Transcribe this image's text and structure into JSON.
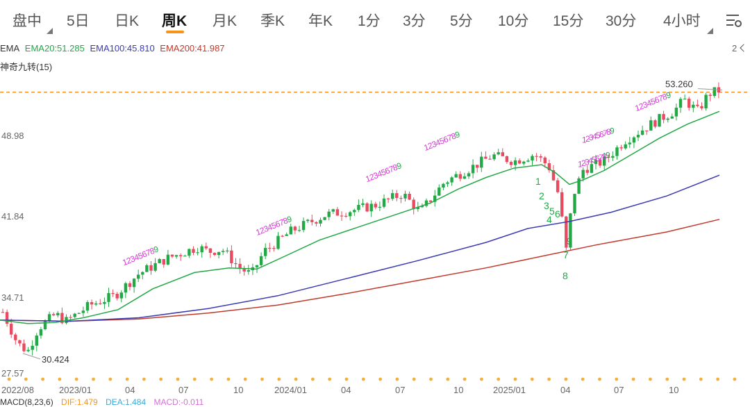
{
  "tabs": [
    {
      "label": "盘中",
      "has_menu": true
    },
    {
      "label": "5日"
    },
    {
      "label": "日K"
    },
    {
      "label": "周K",
      "active": true
    },
    {
      "label": "月K"
    },
    {
      "label": "季K"
    },
    {
      "label": "年K"
    },
    {
      "label": "1分"
    },
    {
      "label": "3分"
    },
    {
      "label": "5分"
    },
    {
      "label": "10分"
    },
    {
      "label": "15分"
    },
    {
      "label": "30分"
    },
    {
      "label": "4小时",
      "has_menu": true
    }
  ],
  "indicators": {
    "ema_label": "EMA",
    "ema20": "EMA20:51.285",
    "ema100": "EMA100:45.810",
    "ema200": "EMA200:41.987",
    "nine_turn": "神奇九转(15)",
    "collapse_count": "2",
    "colors": {
      "ema20": "#22a845",
      "ema100": "#3a3ab4",
      "ema200": "#c0392b",
      "up": "#22a845",
      "down": "#e84a5f"
    }
  },
  "macd": {
    "label": "MACD(8,23,6)",
    "dif": "DIF:1.479",
    "dea": "DEA:1.484",
    "macd": "MACD:-0.011"
  },
  "chart_data": {
    "type": "candlestick",
    "ylim": [
      27.57,
      53.26
    ],
    "y_tick_labels": [
      "48.98",
      "41.84",
      "34.71",
      "27.57"
    ],
    "y_tick_values": [
      48.98,
      41.84,
      34.71,
      27.57
    ],
    "x_tick_labels": [
      "2022/08",
      "2023/01",
      "04",
      "07",
      "10",
      "2024/01",
      "04",
      "07",
      "10",
      "2025/01",
      "04",
      "07",
      "10"
    ],
    "high_label": "53.260",
    "low_label": "30.424",
    "high_value": 53.26,
    "low_value": 30.424,
    "current_price_line": 52.95,
    "ema_last": {
      "ema20": 51.285,
      "ema100": 45.81,
      "ema200": 41.987
    }
  }
}
